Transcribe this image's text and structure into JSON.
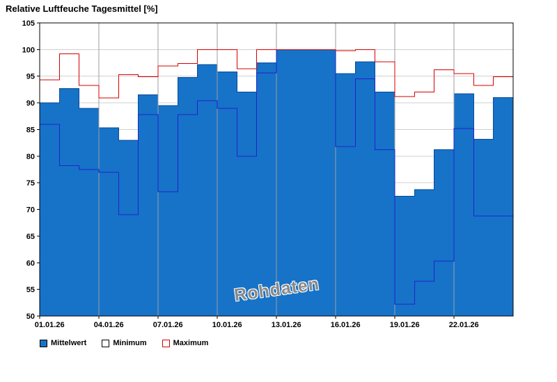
{
  "title": "Relative Luftfeuche Tagesmittel [%]",
  "watermark": "Rohdaten",
  "legend": {
    "items": [
      {
        "label": "Mittelwert",
        "swatch": "filled-blue"
      },
      {
        "label": "Minimum",
        "swatch": "outline-black"
      },
      {
        "label": "Maximum",
        "swatch": "outline-red"
      }
    ]
  },
  "colors": {
    "bar_fill": "#1673C8",
    "bar_edge": "#0A4A98",
    "min_line": "#2222CC",
    "max_line": "#D40000",
    "grid_h": "#D0D0D0",
    "grid_v": "#9E9E9E",
    "axis": "#000000",
    "watermark": "#8A8A8A"
  },
  "chart_data": {
    "type": "bar",
    "title": "Relative Luftfeuche Tagesmittel [%]",
    "xlabel": "",
    "ylabel": "",
    "ylim": [
      50,
      105
    ],
    "ytick_step": 5,
    "grid": true,
    "legend_position": "bottom-left",
    "categories": [
      "01.01.26",
      "02.01.26",
      "03.01.26",
      "04.01.26",
      "05.01.26",
      "06.01.26",
      "07.01.26",
      "08.01.26",
      "09.01.26",
      "10.01.26",
      "11.01.26",
      "12.01.26",
      "13.01.26",
      "14.01.26",
      "15.01.26",
      "16.01.26",
      "17.01.26",
      "18.01.26",
      "19.01.26",
      "20.01.26",
      "21.01.26",
      "22.01.26",
      "23.01.26",
      "24.01.26"
    ],
    "x_tick_labels": [
      "01.01.26",
      "04.01.26",
      "07.01.26",
      "10.01.26",
      "13.01.26",
      "16.01.26",
      "19.01.26",
      "22.01.26"
    ],
    "x_tick_indices": [
      0,
      3,
      6,
      9,
      12,
      15,
      18,
      21
    ],
    "series": [
      {
        "name": "Mittelwert",
        "style": "filled-step-area",
        "values": [
          90.0,
          92.7,
          89.0,
          85.3,
          83.0,
          91.5,
          89.5,
          94.8,
          97.2,
          95.8,
          92.0,
          97.5,
          100.0,
          100.0,
          100.0,
          95.5,
          97.7,
          92.0,
          72.5,
          73.7,
          81.2,
          91.7,
          83.2,
          91.0
        ]
      },
      {
        "name": "Minimum",
        "style": "step-line",
        "values": [
          86.0,
          78.2,
          77.5,
          77.0,
          69.0,
          87.8,
          73.3,
          87.8,
          90.4,
          89.0,
          80.0,
          95.6,
          100.0,
          100.0,
          100.0,
          81.8,
          94.5,
          81.2,
          52.2,
          56.5,
          60.3,
          85.2,
          68.8,
          68.8
        ]
      },
      {
        "name": "Maximum",
        "style": "step-line",
        "values": [
          94.3,
          99.2,
          93.3,
          90.9,
          95.3,
          94.9,
          96.9,
          97.4,
          100.0,
          100.0,
          96.4,
          100.0,
          100.0,
          100.0,
          100.0,
          99.8,
          100.0,
          97.7,
          91.2,
          92.0,
          96.2,
          95.5,
          93.3,
          94.9
        ]
      }
    ],
    "watermark": "Rohdaten"
  }
}
